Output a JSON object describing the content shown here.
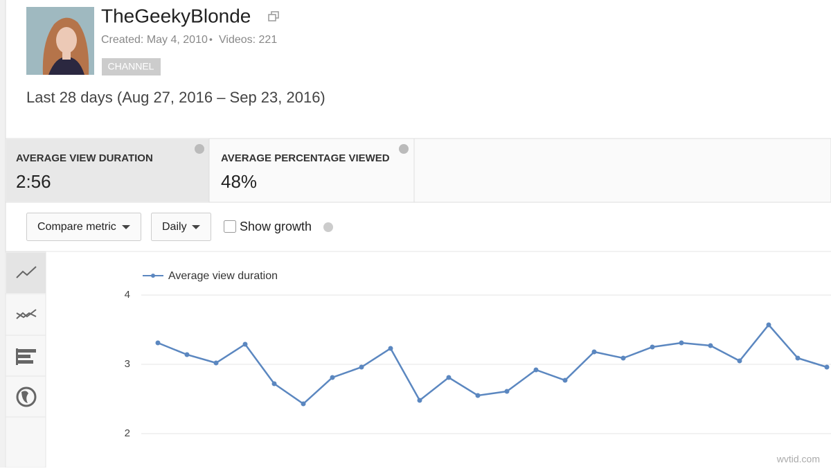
{
  "header": {
    "channel_name": "TheGeekyBlonde",
    "created": "Created: May 4, 2010",
    "separator": "•",
    "videos": "Videos: 221",
    "badge": "CHANNEL",
    "date_range": "Last 28 days (Aug 27, 2016 – Sep 23, 2016)"
  },
  "metrics": [
    {
      "label": "AVERAGE VIEW DURATION",
      "value": "2:56"
    },
    {
      "label": "AVERAGE PERCENTAGE VIEWED",
      "value": "48%"
    }
  ],
  "controls": {
    "compare": "Compare metric",
    "interval": "Daily",
    "growth": "Show growth"
  },
  "watermark": "wvtid.com",
  "chart_data": {
    "type": "line",
    "categories": [
      null,
      null,
      null,
      null,
      null,
      null,
      null,
      null,
      null,
      null,
      null,
      null,
      null,
      null,
      null,
      null,
      null,
      null,
      null,
      null,
      null,
      null,
      null,
      null
    ],
    "series": [
      {
        "name": "Average view duration",
        "color": "#5b87c0",
        "values": [
          3.31,
          3.14,
          3.02,
          3.29,
          2.72,
          2.43,
          2.81,
          2.96,
          3.23,
          2.48,
          2.81,
          2.55,
          2.61,
          2.92,
          2.77,
          3.18,
          3.09,
          3.25,
          3.31,
          3.27,
          3.05,
          3.57,
          3.09,
          2.96
        ]
      }
    ],
    "ylim": [
      2,
      4
    ],
    "yticks": [
      2,
      3,
      4
    ],
    "grid": true
  }
}
